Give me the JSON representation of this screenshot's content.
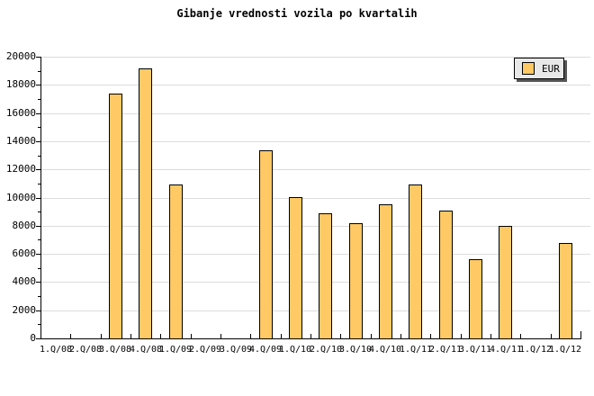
{
  "title": "Gibanje vrednosti vozila po kvartalih",
  "legend": {
    "label": "EUR"
  },
  "colors": {
    "background": "#ffffff",
    "bar_fill": "#ffc966",
    "bar_border": "#000000",
    "grid": "#dcdcdc",
    "axis": "#000000",
    "legend_bg": "#e8e8e8",
    "legend_shadow": "#555555",
    "text": "#000000"
  },
  "chart_data": {
    "type": "bar",
    "title": "Gibanje vrednosti vozila po kvartalih",
    "categories": [
      "1.Q/08",
      "2.Q/08",
      "3.Q/08",
      "4.Q/08",
      "1.Q/09",
      "2.Q/09",
      "3.Q/09",
      "4.Q/09",
      "1.Q/10",
      "2.Q/10",
      "3.Q/10",
      "4.Q/10",
      "1.Q/11",
      "2.Q/11",
      "3.Q/11",
      "4.Q/11",
      "1.Q/12",
      "1.Q/12"
    ],
    "series": [
      {
        "name": "EUR",
        "values": [
          null,
          null,
          17400,
          19200,
          10950,
          null,
          null,
          13350,
          10050,
          8850,
          8150,
          9550,
          10950,
          9050,
          5650,
          8000,
          null,
          6800
        ]
      }
    ],
    "xlabel": "",
    "ylabel": "",
    "ylim": [
      0,
      20000
    ],
    "y_ticks": [
      0,
      2000,
      4000,
      6000,
      8000,
      10000,
      12000,
      14000,
      16000,
      18000,
      20000
    ],
    "ytick_minor_step": 1000,
    "grid": "horizontal-major",
    "legend_position": "top-right"
  }
}
